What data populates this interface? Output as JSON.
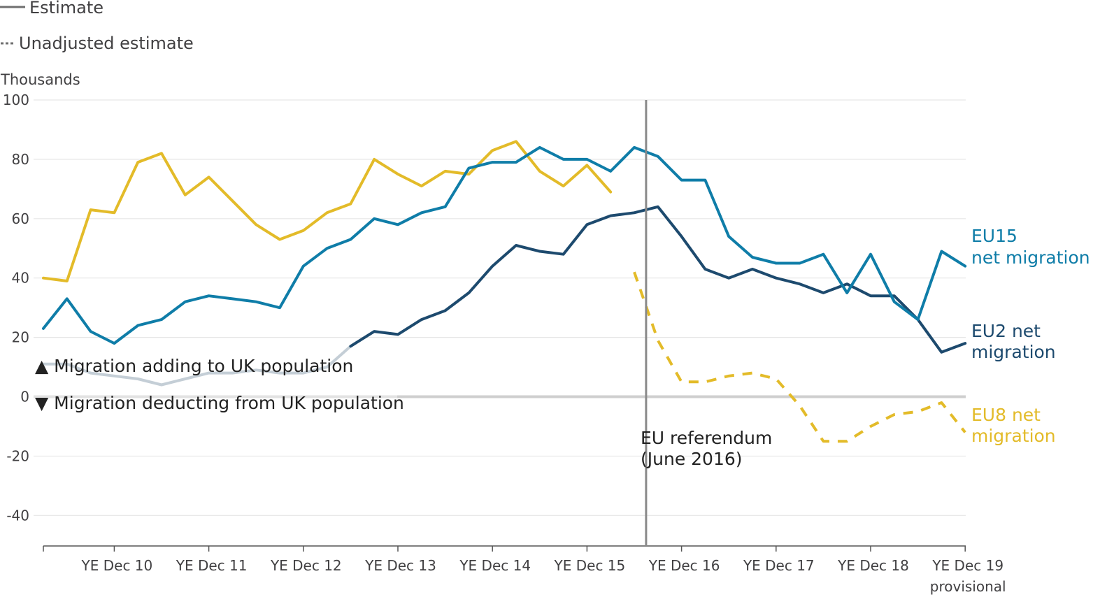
{
  "legend": {
    "estimate": "Estimate",
    "unadjusted": "Unadjusted estimate"
  },
  "annotations": {
    "adding": "▲ Migration adding to UK population",
    "deducting": "▼ Migration deducting from UK population",
    "referendum_line1": "EU referendum",
    "referendum_line2": "(June 2016)"
  },
  "chart_data": {
    "type": "line",
    "ylabel": "Thousands",
    "ylim": [
      -55,
      100
    ],
    "yticks": [
      100,
      80,
      60,
      40,
      20,
      0,
      -20,
      -40
    ],
    "x_tick_labels": [
      {
        "i": 3,
        "lines": [
          "YE Dec 10"
        ]
      },
      {
        "i": 7,
        "lines": [
          "YE Dec 11"
        ]
      },
      {
        "i": 11,
        "lines": [
          "YE Dec 12"
        ]
      },
      {
        "i": 15,
        "lines": [
          "YE Dec 13"
        ]
      },
      {
        "i": 19,
        "lines": [
          "YE Dec 14"
        ]
      },
      {
        "i": 23,
        "lines": [
          "YE Dec 15"
        ]
      },
      {
        "i": 27,
        "lines": [
          "YE Dec 16"
        ]
      },
      {
        "i": 31,
        "lines": [
          "YE Dec 17"
        ]
      },
      {
        "i": 35,
        "lines": [
          "YE Dec 18"
        ]
      },
      {
        "i": 39,
        "lines": [
          "YE Dec 19",
          "provisional"
        ]
      }
    ],
    "x_range": [
      0,
      39
    ],
    "referendum_index": 25.5,
    "grid": true,
    "series": [
      {
        "name": "EU15 net migration",
        "label_lines": [
          "EU15",
          "net migration"
        ],
        "color": "#0f7da8",
        "segments": [
          {
            "style": "solid",
            "start": 0,
            "values": [
              23,
              33,
              22,
              18,
              24,
              26,
              32,
              34,
              33,
              32,
              30,
              44,
              50,
              53,
              60,
              58,
              62,
              64,
              77,
              79,
              79,
              84,
              80,
              80,
              76,
              84,
              81,
              73,
              73,
              54,
              47,
              45,
              45,
              48,
              35,
              48,
              32,
              26,
              49,
              44
            ]
          }
        ]
      },
      {
        "name": "EU2 net migration",
        "label_lines": [
          "EU2 net",
          "migration"
        ],
        "color": "#1d4a6e",
        "segments": [
          {
            "style": "solid",
            "start": 0,
            "values": [
              11
            ]
          },
          {
            "style": "faded",
            "color": "#c4ced6",
            "start": 0,
            "values": [
              11,
              11,
              8,
              7,
              6,
              4,
              6,
              8,
              8,
              9,
              8,
              8,
              10,
              17
            ]
          },
          {
            "style": "solid",
            "start": 13,
            "values": [
              17,
              22,
              21,
              26,
              29,
              35,
              44,
              51,
              49,
              48,
              58,
              61,
              62,
              64,
              54,
              43,
              40,
              43,
              40,
              38,
              35,
              38,
              34,
              34,
              26,
              15,
              18
            ]
          }
        ]
      },
      {
        "name": "EU8 net migration",
        "label_lines": [
          "EU8 net",
          "migration"
        ],
        "color": "#e3bb29",
        "segments": [
          {
            "style": "solid",
            "start": 0,
            "values": [
              40,
              39,
              63,
              62,
              79,
              82,
              68,
              74,
              66,
              58,
              53,
              56,
              62,
              65,
              80,
              75,
              71,
              76,
              75,
              83,
              86,
              76,
              71,
              78,
              69
            ]
          },
          {
            "style": "dashed",
            "start": 25,
            "values": [
              42,
              19,
              5,
              5,
              7,
              8,
              6,
              -3,
              -15,
              -15,
              -10,
              -6,
              -5,
              -2,
              -12
            ]
          }
        ]
      }
    ]
  }
}
